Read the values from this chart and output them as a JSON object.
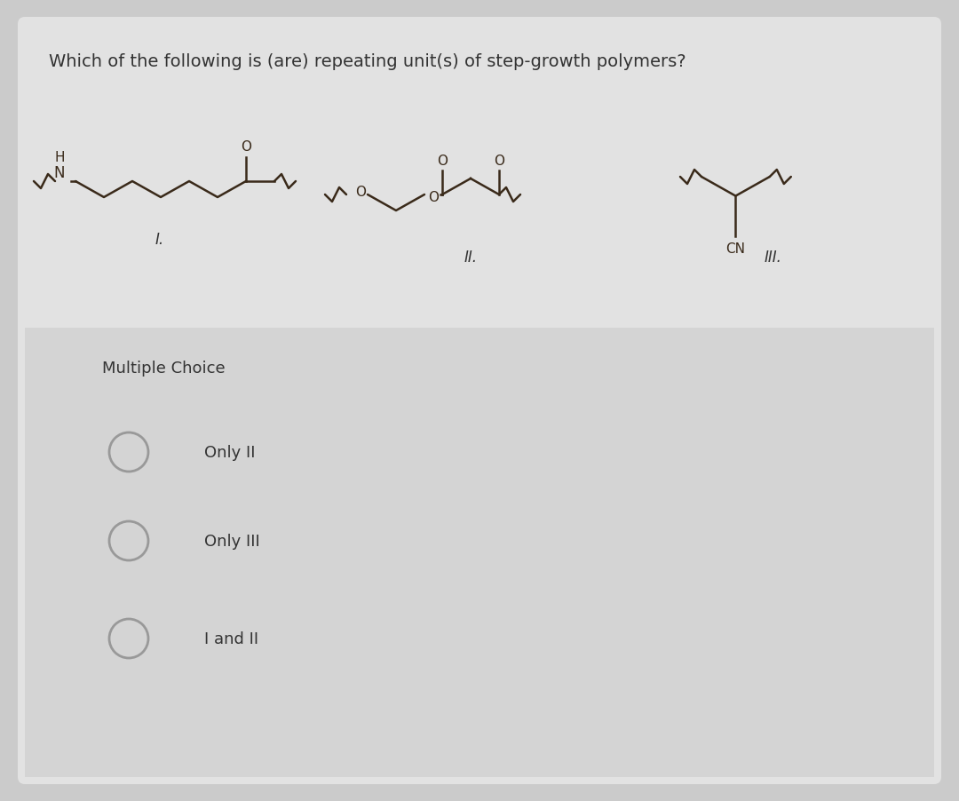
{
  "title": "Which of the following is (are) repeating unit(s) of step-growth polymers?",
  "title_fontsize": 14,
  "bg_color": "#cbcbcb",
  "card_color": "#e2e2e2",
  "question_label": "Multiple Choice",
  "options": [
    "Only II",
    "Only III",
    "I and II"
  ],
  "structure_labels": [
    "I.",
    "II.",
    "III."
  ],
  "mol_color": "#3a2a1a",
  "text_color": "#333333",
  "circle_color": "#999999"
}
